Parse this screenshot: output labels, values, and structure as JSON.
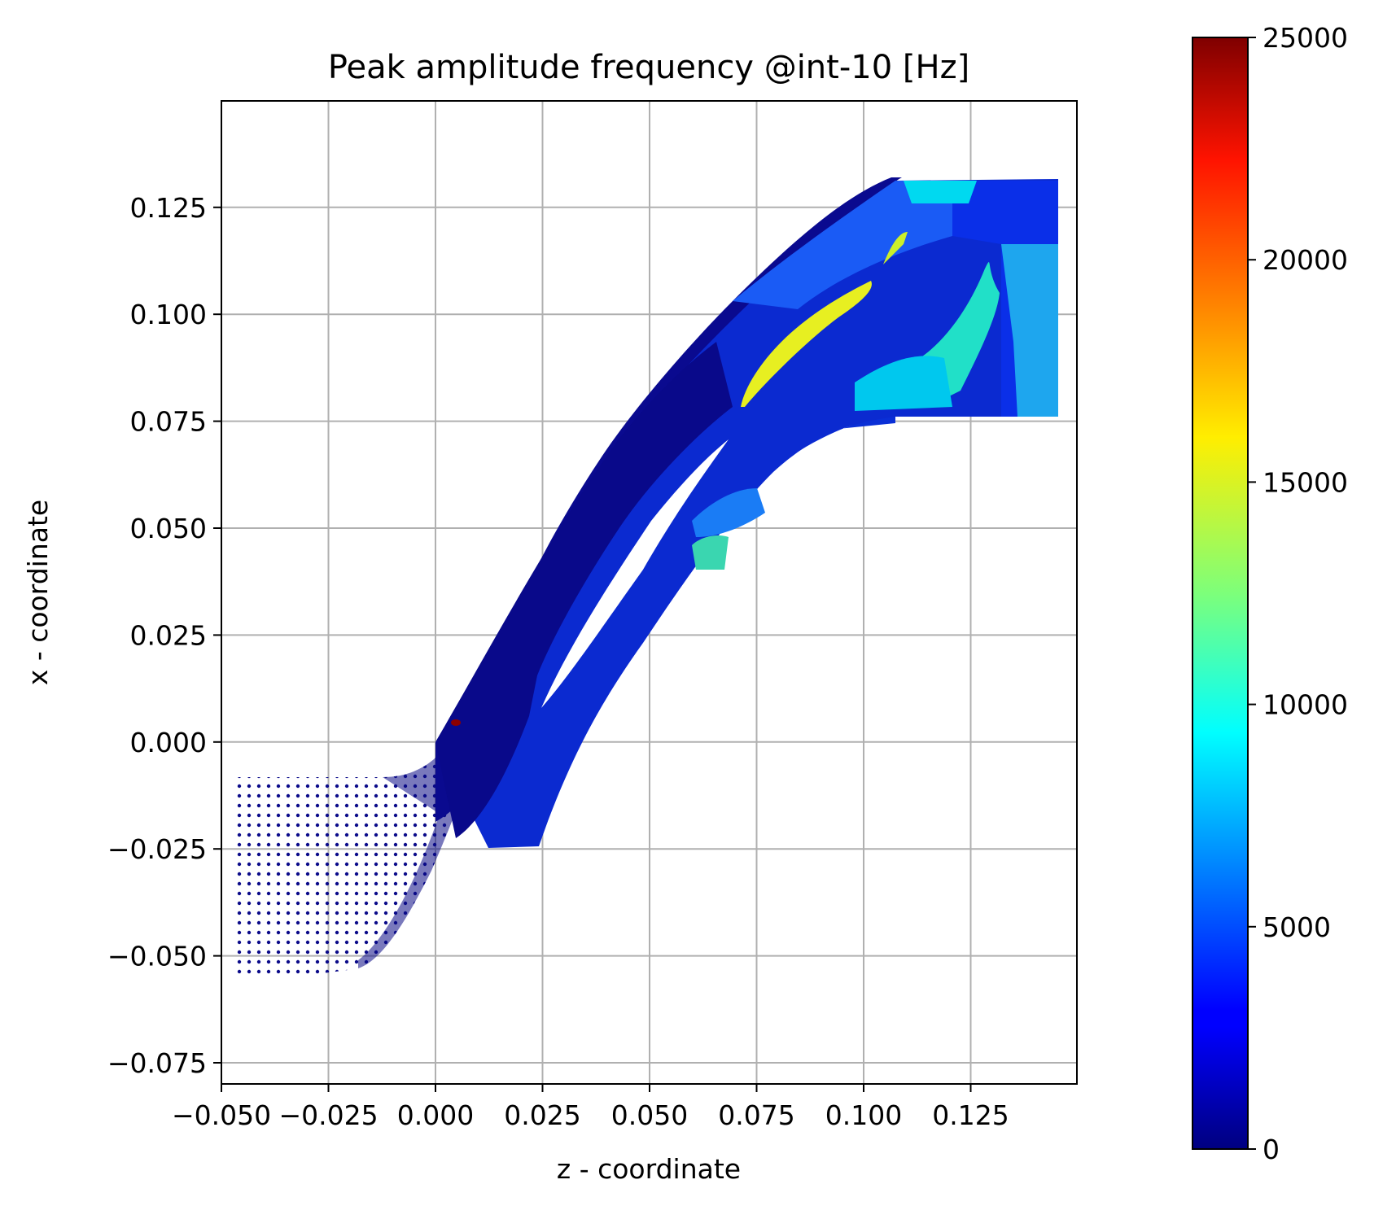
{
  "chart_data": {
    "type": "scatter",
    "title": "Peak amplitude frequency @int-10 [Hz]",
    "xlabel": "z - coordinate",
    "ylabel": "x - coordinate",
    "xlim": [
      -0.05,
      0.15
    ],
    "ylim": [
      -0.08,
      0.15
    ],
    "x_ticks": [
      "−0.050",
      "−0.025",
      "0.000",
      "0.025",
      "0.050",
      "0.075",
      "0.100",
      "0.125"
    ],
    "y_ticks": [
      "−0.075",
      "−0.050",
      "−0.025",
      "0.000",
      "0.025",
      "0.050",
      "0.075",
      "0.100",
      "0.125"
    ],
    "grid": true,
    "colormap": "jet",
    "colorbar": {
      "min": 0,
      "max": 25000,
      "ticks": [
        "0",
        "5000",
        "10000",
        "15000",
        "20000",
        "25000"
      ]
    },
    "regions": [
      {
        "z": [
          -0.048,
          -0.01
        ],
        "x": [
          -0.071,
          -0.008
        ],
        "value": 800
      },
      {
        "z": [
          0.0,
          0.07
        ],
        "x": [
          -0.025,
          0.12
        ],
        "value": 1500
      },
      {
        "z": [
          0.072,
          0.1
        ],
        "x": [
          0.076,
          0.11
        ],
        "value": 16000
      },
      {
        "z": [
          0.105,
          0.135
        ],
        "x": [
          0.075,
          0.113
        ],
        "value": 9000
      },
      {
        "z": [
          0.11,
          0.148
        ],
        "x": [
          0.077,
          0.132
        ],
        "value": 5500
      }
    ]
  }
}
